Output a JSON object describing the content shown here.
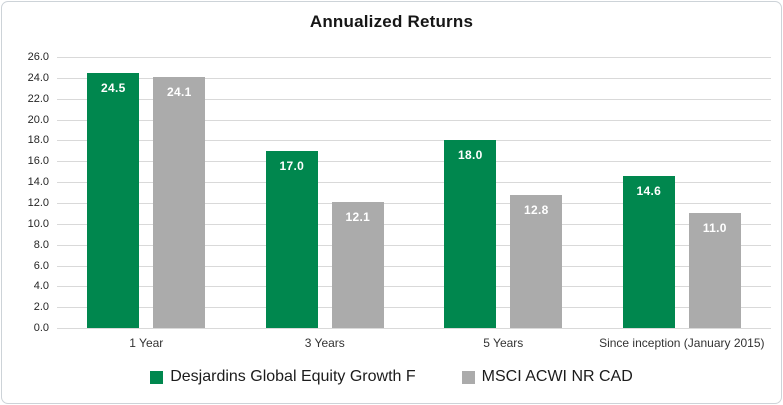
{
  "chart_data": {
    "type": "bar",
    "title": "Annualized Returns",
    "categories": [
      "1 Year",
      "3 Years",
      "5 Years",
      "Since inception (January 2015)"
    ],
    "series": [
      {
        "name": "Desjardins Global Equity Growth F",
        "color": "#00874E",
        "values": [
          24.5,
          17.0,
          18.0,
          14.6
        ]
      },
      {
        "name": "MSCI ACWI NR CAD",
        "color": "#ABABAB",
        "values": [
          24.1,
          12.1,
          12.8,
          11.0
        ]
      }
    ],
    "ylim": [
      0,
      26
    ],
    "ytick_step": 2,
    "ytick_format_decimals": 1,
    "value_label_decimals": 1,
    "grid": true,
    "legend_position": "bottom",
    "colors": {
      "value_label": "#FFFFFF",
      "gridline": "#D9D9D9",
      "axis_text": "#262626",
      "frame_border": "#CDD3D8",
      "background": "#FFFFFF"
    }
  }
}
